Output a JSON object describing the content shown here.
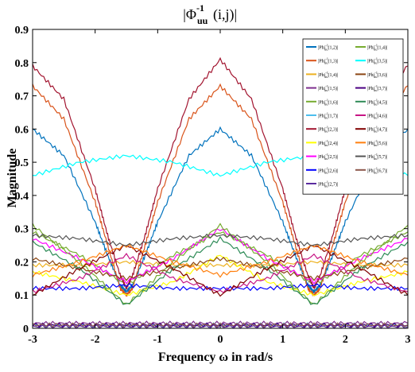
{
  "chart_data": {
    "type": "line",
    "title": "|Φ",
    "title_sup": "-1",
    "title_sub": "uu",
    "title_tail": "(i,j)|",
    "xlabel": "Frequency ω in rad/s",
    "ylabel": "Magnitude",
    "xlim": [
      -3,
      3
    ],
    "ylim": [
      0,
      0.9
    ],
    "x_ticks": [
      -3,
      -2,
      -1,
      0,
      1,
      2,
      3
    ],
    "x_tick_labels": [
      "-3",
      "-2",
      "-1",
      "0",
      "1",
      "2",
      "3"
    ],
    "y_ticks": [
      0,
      0.1,
      0.2,
      0.3,
      0.4,
      0.5,
      0.6,
      0.7,
      0.8,
      0.9
    ],
    "y_tick_labels": [
      "0",
      "0.1",
      "0.2",
      "0.3",
      "0.4",
      "0.5",
      "0.6",
      "0.7",
      "0.8",
      "0.9"
    ],
    "grid": false,
    "legend_position": "top-right",
    "legend_prefix": "|Phi",
    "legend_sup": "-1",
    "legend_sub": "uu",
    "series": [
      {
        "name": "(1,2)|",
        "color": "#0072BD",
        "x": [
          -3,
          -2.5,
          -2,
          -1.8,
          -1.6,
          -1.5,
          -1.4,
          -1.2,
          -1,
          -0.5,
          0,
          0.5,
          1,
          1.2,
          1.4,
          1.5,
          1.6,
          1.8,
          2,
          2.5,
          3
        ],
        "y": [
          0.6,
          0.52,
          0.32,
          0.22,
          0.13,
          0.11,
          0.13,
          0.22,
          0.32,
          0.52,
          0.6,
          0.52,
          0.32,
          0.22,
          0.13,
          0.11,
          0.13,
          0.22,
          0.32,
          0.52,
          0.6
        ]
      },
      {
        "name": "(1,3)|",
        "color": "#D95319",
        "x": [
          -3,
          -2.5,
          -2,
          -1.8,
          -1.6,
          -1.5,
          -1.4,
          -1.2,
          -1,
          -0.5,
          0,
          0.5,
          1,
          1.2,
          1.4,
          1.5,
          1.6,
          1.8,
          2,
          2.5,
          3
        ],
        "y": [
          0.73,
          0.63,
          0.38,
          0.25,
          0.12,
          0.1,
          0.12,
          0.25,
          0.38,
          0.63,
          0.73,
          0.63,
          0.38,
          0.25,
          0.12,
          0.1,
          0.12,
          0.25,
          0.38,
          0.63,
          0.73
        ]
      },
      {
        "name": "(1,4)|",
        "color": "#EDB120",
        "x": [
          -3,
          -2.25,
          -1.5,
          -0.75,
          0,
          0.75,
          1.5,
          2.25,
          3
        ],
        "y": [
          0.19,
          0.19,
          0.2,
          0.19,
          0.19,
          0.19,
          0.2,
          0.19,
          0.19
        ]
      },
      {
        "name": "(1,5)|",
        "color": "#7E2F8E",
        "x": [
          -3,
          -2.25,
          -1.5,
          -0.75,
          0,
          0.75,
          1.5,
          2.25,
          3
        ],
        "y": [
          0.015,
          0.015,
          0.015,
          0.015,
          0.015,
          0.015,
          0.015,
          0.015,
          0.015
        ]
      },
      {
        "name": "(1,6)|",
        "color": "#77AC30",
        "x": [
          -3,
          -2.25,
          -1.5,
          -0.75,
          0,
          0.75,
          1.5,
          2.25,
          3
        ],
        "y": [
          0.29,
          0.22,
          0.13,
          0.22,
          0.29,
          0.22,
          0.13,
          0.22,
          0.29
        ]
      },
      {
        "name": "(1,7)|",
        "color": "#4DBEEE",
        "x": [
          -3,
          -2.25,
          -1.5,
          -0.75,
          0,
          0.75,
          1.5,
          2.25,
          3
        ],
        "y": [
          0.01,
          0.01,
          0.01,
          0.01,
          0.01,
          0.01,
          0.01,
          0.01,
          0.01
        ]
      },
      {
        "name": "(2,3)|",
        "color": "#A2142F",
        "x": [
          -3,
          -2.5,
          -2,
          -1.8,
          -1.6,
          -1.5,
          -1.4,
          -1.2,
          -1,
          -0.5,
          0,
          0.5,
          1,
          1.2,
          1.4,
          1.5,
          1.6,
          1.8,
          2,
          2.5,
          3
        ],
        "y": [
          0.79,
          0.69,
          0.42,
          0.28,
          0.16,
          0.12,
          0.16,
          0.28,
          0.42,
          0.69,
          0.81,
          0.69,
          0.42,
          0.28,
          0.16,
          0.12,
          0.16,
          0.28,
          0.42,
          0.69,
          0.79
        ]
      },
      {
        "name": "(2,4)|",
        "color": "#FFFF00",
        "x": [
          -3,
          -2.25,
          -1.5,
          -0.75,
          0,
          0.75,
          1.5,
          2.25,
          3
        ],
        "y": [
          0.17,
          0.14,
          0.1,
          0.14,
          0.22,
          0.14,
          0.1,
          0.14,
          0.17
        ]
      },
      {
        "name": "(2,5)|",
        "color": "#FF00FF",
        "x": [
          -3,
          -2.25,
          -1.5,
          -0.75,
          0,
          0.75,
          1.5,
          2.25,
          3
        ],
        "y": [
          0.27,
          0.21,
          0.14,
          0.21,
          0.3,
          0.21,
          0.14,
          0.21,
          0.27
        ]
      },
      {
        "name": "(2,6)|",
        "color": "#0000FF",
        "x": [
          -3,
          -2.25,
          -1.5,
          -0.75,
          0,
          0.75,
          1.5,
          2.25,
          3
        ],
        "y": [
          0.12,
          0.12,
          0.13,
          0.12,
          0.12,
          0.12,
          0.13,
          0.12,
          0.12
        ]
      },
      {
        "name": "(2,7)|",
        "color": "#5B2C9F",
        "x": [
          -3,
          -2.25,
          -1.5,
          -0.75,
          0,
          0.75,
          1.5,
          2.25,
          3
        ],
        "y": [
          0.005,
          0.005,
          0.005,
          0.005,
          0.005,
          0.005,
          0.005,
          0.005,
          0.005
        ]
      },
      {
        "name": "(1,4)|",
        "color": "#77AC30",
        "x": [
          -3,
          -2.25,
          -1.5,
          -0.75,
          0,
          0.75,
          1.5,
          2.25,
          3
        ],
        "y": [
          0.31,
          0.2,
          0.07,
          0.2,
          0.31,
          0.2,
          0.07,
          0.2,
          0.31
        ]
      },
      {
        "name": "(3,5)|",
        "color": "#00FFFF",
        "x": [
          -3,
          -2.25,
          -1.5,
          -0.75,
          0,
          0.75,
          1.5,
          2.25,
          3
        ],
        "y": [
          0.46,
          0.5,
          0.52,
          0.5,
          0.46,
          0.5,
          0.52,
          0.5,
          0.46
        ]
      },
      {
        "name": "(3,6)|",
        "color": "#8B4513",
        "x": [
          -3,
          -2.25,
          -1.5,
          -0.75,
          0,
          0.75,
          1.5,
          2.25,
          3
        ],
        "y": [
          0.21,
          0.18,
          0.15,
          0.18,
          0.21,
          0.18,
          0.15,
          0.18,
          0.21
        ]
      },
      {
        "name": "(3,7)|",
        "color": "#4B0082",
        "x": [
          -3,
          -2.25,
          -1.5,
          -0.75,
          0,
          0.75,
          1.5,
          2.25,
          3
        ],
        "y": [
          0.01,
          0.01,
          0.01,
          0.01,
          0.01,
          0.01,
          0.01,
          0.01,
          0.01
        ]
      },
      {
        "name": "(4,5)|",
        "color": "#2E8B57",
        "x": [
          -3,
          -2.25,
          -1.5,
          -0.75,
          0,
          0.75,
          1.5,
          2.25,
          3
        ],
        "y": [
          0.26,
          0.18,
          0.07,
          0.18,
          0.27,
          0.18,
          0.07,
          0.18,
          0.26
        ]
      },
      {
        "name": "(4,6)|",
        "color": "#C71585",
        "x": [
          -3,
          -2.25,
          -1.5,
          -0.75,
          0,
          0.75,
          1.5,
          2.25,
          3
        ],
        "y": [
          0.11,
          0.15,
          0.22,
          0.15,
          0.11,
          0.15,
          0.22,
          0.15,
          0.11
        ]
      },
      {
        "name": "(4,7)|",
        "color": "#800000",
        "x": [
          -3,
          -2.25,
          -1.5,
          -0.75,
          0,
          0.75,
          1.5,
          2.25,
          3
        ],
        "y": [
          0.1,
          0.18,
          0.25,
          0.18,
          0.1,
          0.18,
          0.25,
          0.18,
          0.1
        ]
      },
      {
        "name": "(5,6)|",
        "color": "#FF7F0E",
        "x": [
          -3,
          -2.25,
          -1.5,
          -0.75,
          0,
          0.75,
          1.5,
          2.25,
          3
        ],
        "y": [
          0.16,
          0.2,
          0.25,
          0.2,
          0.16,
          0.2,
          0.25,
          0.2,
          0.16
        ]
      },
      {
        "name": "(5,7)|",
        "color": "#555555",
        "x": [
          -3,
          -2.25,
          -1.5,
          -0.75,
          0,
          0.75,
          1.5,
          2.25,
          3
        ],
        "y": [
          0.28,
          0.27,
          0.25,
          0.27,
          0.28,
          0.27,
          0.25,
          0.27,
          0.28
        ]
      },
      {
        "name": "(6,7)|",
        "color": "#8C564B",
        "x": [
          -3,
          -2.25,
          -1.5,
          -0.75,
          0,
          0.75,
          1.5,
          2.25,
          3
        ],
        "y": [
          0.01,
          0.01,
          0.01,
          0.01,
          0.01,
          0.01,
          0.01,
          0.01,
          0.01
        ]
      }
    ]
  }
}
